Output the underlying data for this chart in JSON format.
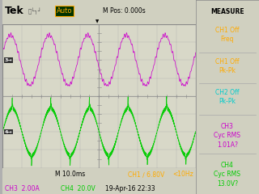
{
  "fig_bg": "#b0b0b0",
  "screen_bg": "#d8d8c8",
  "grid_color": "#aaaaaa",
  "header_bg": "#d0d0c0",
  "footer_bg": "#d0d0c0",
  "sidebar_bg": "#d0d0c0",
  "ch3_color": "#cc00cc",
  "ch4_color": "#00cc00",
  "ch3_label_color": "#cc00cc",
  "ch4_label_color": "#00cc00",
  "sidebar_ch1_color": "#ffaa00",
  "sidebar_ch2_color": "#00cccc",
  "sidebar_ch3_color": "#cc00cc",
  "sidebar_ch4_color": "#00cc00",
  "footer_ch1_color": "#ffaa00",
  "white": "#ffffff",
  "black": "#000000",
  "date_color": "#000000",
  "measure_color": "#000000",
  "tek_color": "#000000",
  "mpos_color": "#000000",
  "title": "Tek",
  "trigger_text": "Auto",
  "mpos_text": "M Pos: 0.000s",
  "measure_text": "MEASURE",
  "timebase_text": "M 10.0ms",
  "ch1_trig_text": "CH1 / 6.80V",
  "freq_text": "<10Hz",
  "ch3_footer": "CH3  2.00A",
  "ch4_footer": "CH4  20.0V",
  "date_text": "19-Apr-16 22:33",
  "sidebar_items": [
    {
      "text": "CH1 Off\nFreq",
      "color": "#ffaa00"
    },
    {
      "text": "CH1 Off\nPk-Pk",
      "color": "#ffaa00"
    },
    {
      "text": "CH2 Off\nPk-Pk",
      "color": "#00cccc"
    },
    {
      "text": "CH3\nCyc RMS\n1.01A?",
      "color": "#cc00cc"
    },
    {
      "text": "CH4\nCyc RMS\n13.0V?",
      "color": "#00cc00"
    }
  ]
}
